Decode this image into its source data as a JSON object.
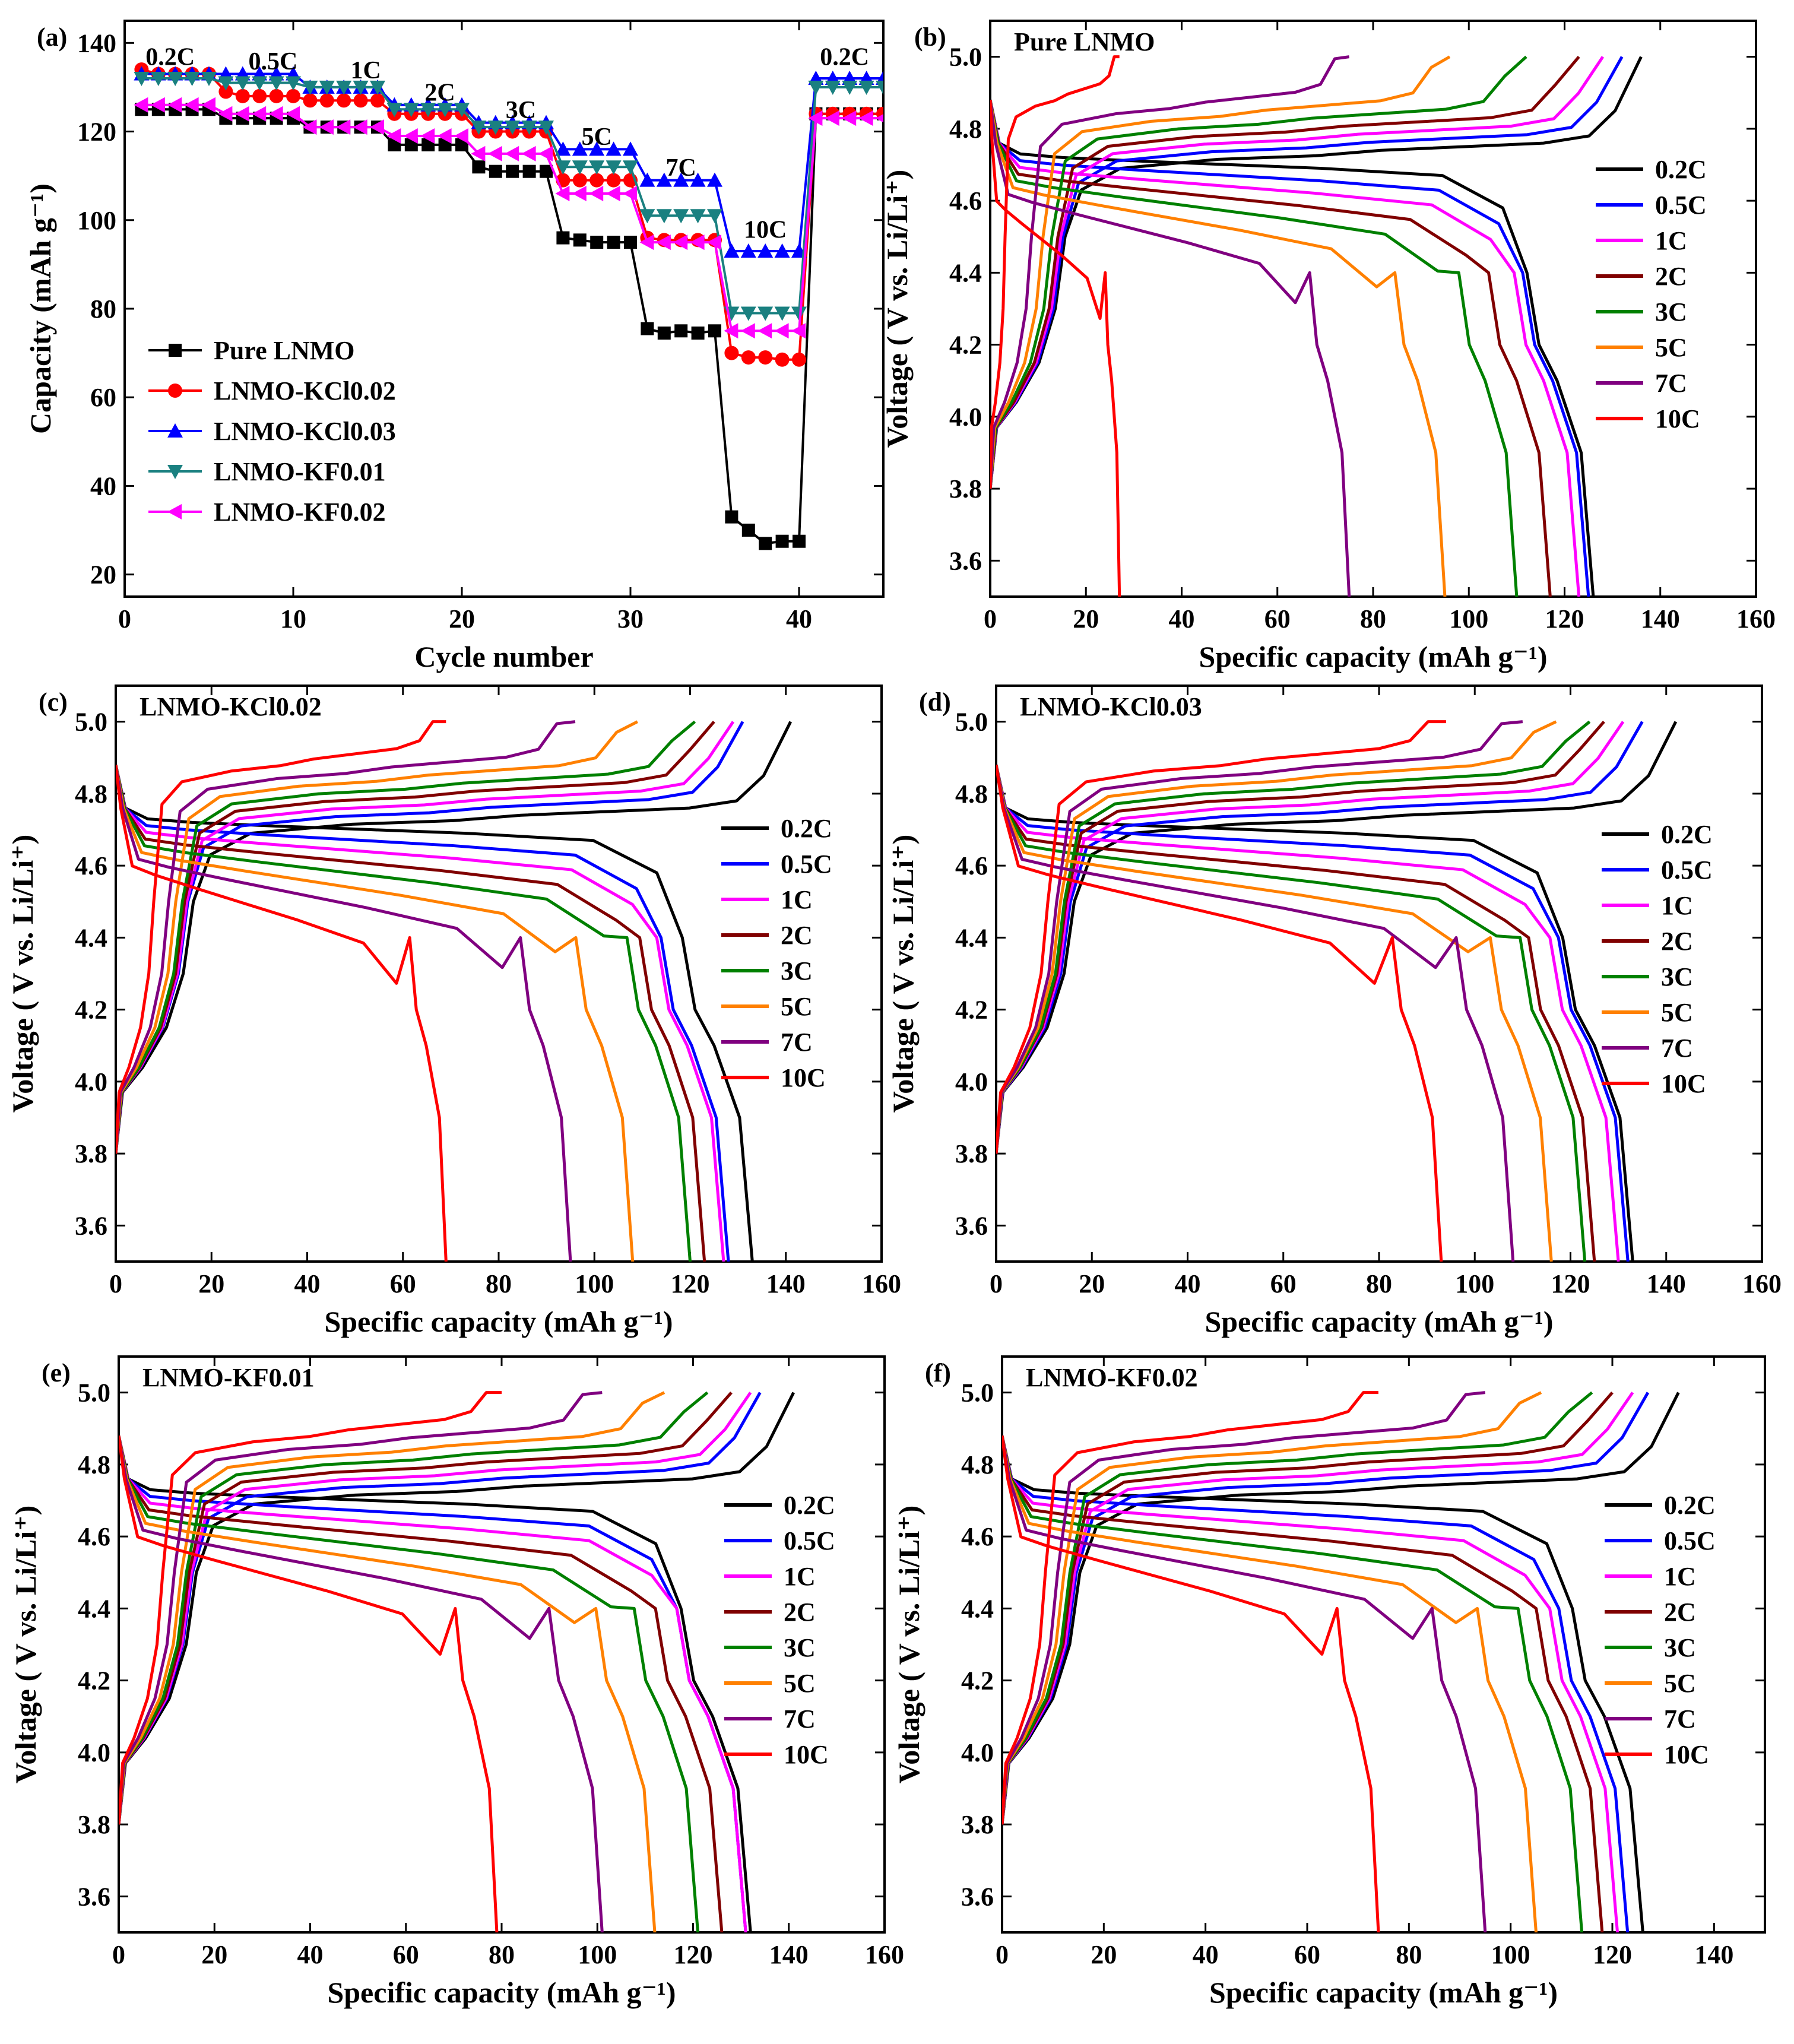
{
  "chart_data": [
    {
      "panel": "(a)",
      "type": "line",
      "title": "",
      "xlabel": "Cycle number",
      "ylabel": "Capacity (mAh g⁻¹)",
      "xlim": [
        0,
        45
      ],
      "ylim": [
        15,
        145
      ],
      "xticks": [
        0,
        10,
        20,
        30,
        40
      ],
      "yticks": [
        20,
        40,
        60,
        80,
        100,
        120,
        140
      ],
      "rate_labels": [
        {
          "text": "0.2C",
          "x": 2.7,
          "y": 135
        },
        {
          "text": "0.5C",
          "x": 8.8,
          "y": 134
        },
        {
          "text": "1C",
          "x": 14.3,
          "y": 132
        },
        {
          "text": "2C",
          "x": 18.7,
          "y": 127
        },
        {
          "text": "3C",
          "x": 23.5,
          "y": 123
        },
        {
          "text": "5C",
          "x": 28,
          "y": 117
        },
        {
          "text": "7C",
          "x": 33.0,
          "y": 110
        },
        {
          "text": "10C",
          "x": 38.0,
          "y": 96
        },
        {
          "text": "0.2C",
          "x": 42.7,
          "y": 135
        }
      ],
      "x": [
        1,
        2,
        3,
        4,
        5,
        6,
        7,
        8,
        9,
        10,
        11,
        12,
        13,
        14,
        15,
        16,
        17,
        18,
        19,
        20,
        21,
        22,
        23,
        24,
        25,
        26,
        27,
        28,
        29,
        30,
        31,
        32,
        33,
        34,
        35,
        36,
        37,
        38,
        39,
        40,
        41,
        42,
        43,
        44,
        45
      ],
      "series": [
        {
          "name": "Pure LNMO",
          "color": "#000000",
          "marker": "square",
          "values": [
            125,
            125,
            125,
            125,
            125,
            123,
            123,
            123,
            123,
            123,
            121,
            121,
            121,
            121,
            121,
            117,
            117,
            117,
            117,
            117,
            112,
            111,
            111,
            111,
            111,
            96,
            95.5,
            95,
            95,
            95,
            75.5,
            74.5,
            75,
            74.5,
            75,
            33,
            30,
            27,
            27.5,
            27.5,
            124,
            124,
            124,
            124,
            124
          ]
        },
        {
          "name": "LNMO-KCl0.02",
          "color": "#ff0000",
          "marker": "circle",
          "values": [
            134,
            133,
            133,
            133,
            133,
            129,
            128,
            128,
            128,
            128,
            127,
            127,
            127,
            127,
            127,
            124,
            124,
            124,
            124,
            124,
            120,
            120,
            120,
            120,
            120,
            109,
            109,
            109,
            109,
            109,
            96,
            95.5,
            95.5,
            95.5,
            95.5,
            70,
            69,
            69,
            68.5,
            68.5,
            124,
            124,
            124,
            124,
            124
          ]
        },
        {
          "name": "LNMO-KCl0.03",
          "color": "#0000ff",
          "marker": "triangle-up",
          "values": [
            133,
            133,
            133,
            133,
            133,
            133,
            133,
            133,
            133,
            133,
            130,
            130,
            130,
            130,
            130,
            126,
            126,
            126,
            126,
            126,
            122,
            122,
            122,
            122,
            122,
            116,
            116,
            116,
            116,
            116,
            109,
            109,
            109,
            109,
            109,
            93,
            93,
            93,
            93,
            93,
            132,
            132,
            132,
            132,
            132
          ]
        },
        {
          "name": "LNMO-KF0.01",
          "color": "#1a8080",
          "marker": "triangle-down",
          "values": [
            132,
            132,
            132,
            132,
            132,
            131,
            131,
            131,
            131,
            131,
            130,
            130,
            130,
            130,
            130,
            125,
            125,
            125,
            125,
            125,
            121,
            121,
            121,
            121,
            121,
            112,
            112,
            112,
            112,
            112,
            101,
            101,
            101,
            101,
            101,
            79,
            79,
            79,
            79,
            79,
            130,
            130,
            130,
            130,
            130
          ]
        },
        {
          "name": "LNMO-KF0.02",
          "color": "#ff00ff",
          "marker": "triangle-left",
          "values": [
            126,
            126,
            126,
            126,
            126,
            124,
            124,
            124,
            124,
            124,
            121,
            121,
            121,
            121,
            121,
            119,
            119,
            119,
            119,
            119,
            115,
            115,
            115,
            115,
            115,
            106,
            106,
            106,
            106,
            106,
            95,
            95,
            95,
            95,
            95,
            75,
            75,
            75,
            75,
            75,
            123,
            123,
            123,
            123,
            123
          ]
        }
      ]
    },
    {
      "panel": "(b)",
      "panel_title": "Pure LNMO",
      "type": "line",
      "xlabel": "Specific capacity (mAh g⁻¹)",
      "ylabel": "Voltage ( V vs. Li/Li⁺)",
      "xlim": [
        0,
        160
      ],
      "ylim": [
        3.5,
        5.1
      ],
      "xticks": [
        0,
        20,
        40,
        60,
        80,
        100,
        120,
        140,
        160
      ],
      "yticks": [
        3.6,
        3.8,
        4.0,
        4.2,
        4.4,
        4.6,
        4.8,
        5.0
      ],
      "series": [
        {
          "name": "0.2C",
          "color": "#000000",
          "charge_end": 136,
          "discharge_end": 126
        },
        {
          "name": "0.5C",
          "color": "#0000ff",
          "charge_end": 132,
          "discharge_end": 125
        },
        {
          "name": "1C",
          "color": "#ff00ff",
          "charge_end": 128,
          "discharge_end": 123
        },
        {
          "name": "2C",
          "color": "#800000",
          "charge_end": 123,
          "discharge_end": 117
        },
        {
          "name": "3C",
          "color": "#008000",
          "charge_end": 112,
          "discharge_end": 110
        },
        {
          "name": "5C",
          "color": "#ff8000",
          "charge_end": 96,
          "discharge_end": 95
        },
        {
          "name": "7C",
          "color": "#800080",
          "charge_end": 75,
          "discharge_end": 75
        },
        {
          "name": "10C",
          "color": "#ff0000",
          "charge_end": 27,
          "discharge_end": 27
        }
      ]
    },
    {
      "panel": "(c)",
      "panel_title": "LNMO-KCl0.02",
      "type": "line",
      "xlabel": "Specific capacity (mAh g⁻¹)",
      "ylabel": "Voltage ( V vs. Li/Li⁺)",
      "xlim": [
        0,
        160
      ],
      "ylim": [
        3.5,
        5.1
      ],
      "xticks": [
        0,
        20,
        40,
        60,
        80,
        100,
        120,
        140,
        160
      ],
      "yticks": [
        3.6,
        3.8,
        4.0,
        4.2,
        4.4,
        4.6,
        4.8,
        5.0
      ],
      "series": [
        {
          "name": "0.2C",
          "color": "#000000",
          "charge_end": 141,
          "discharge_end": 133
        },
        {
          "name": "0.5C",
          "color": "#0000ff",
          "charge_end": 131,
          "discharge_end": 128
        },
        {
          "name": "1C",
          "color": "#ff00ff",
          "charge_end": 129,
          "discharge_end": 127
        },
        {
          "name": "2C",
          "color": "#800000",
          "charge_end": 125,
          "discharge_end": 123
        },
        {
          "name": "3C",
          "color": "#008000",
          "charge_end": 121,
          "discharge_end": 120
        },
        {
          "name": "5C",
          "color": "#ff8000",
          "charge_end": 109,
          "discharge_end": 108
        },
        {
          "name": "7C",
          "color": "#800080",
          "charge_end": 96,
          "discharge_end": 95
        },
        {
          "name": "10C",
          "color": "#ff0000",
          "charge_end": 69,
          "discharge_end": 69
        }
      ]
    },
    {
      "panel": "(d)",
      "panel_title": "LNMO-KCl0.03",
      "type": "line",
      "xlabel": "Specific capacity (mAh g⁻¹)",
      "ylabel": "Voltage ( V vs. Li/Li⁺)",
      "xlim": [
        0,
        160
      ],
      "ylim": [
        3.5,
        5.1
      ],
      "xticks": [
        0,
        20,
        40,
        60,
        80,
        100,
        120,
        140,
        160
      ],
      "yticks": [
        3.6,
        3.8,
        4.0,
        4.2,
        4.4,
        4.6,
        4.8,
        5.0
      ],
      "series": [
        {
          "name": "0.2C",
          "color": "#000000",
          "charge_end": 142,
          "discharge_end": 133
        },
        {
          "name": "0.5C",
          "color": "#0000ff",
          "charge_end": 135,
          "discharge_end": 132
        },
        {
          "name": "1C",
          "color": "#ff00ff",
          "charge_end": 131,
          "discharge_end": 130
        },
        {
          "name": "2C",
          "color": "#800000",
          "charge_end": 127,
          "discharge_end": 125
        },
        {
          "name": "3C",
          "color": "#008000",
          "charge_end": 124,
          "discharge_end": 123
        },
        {
          "name": "5C",
          "color": "#ff8000",
          "charge_end": 117,
          "discharge_end": 116
        },
        {
          "name": "7C",
          "color": "#800080",
          "charge_end": 110,
          "discharge_end": 108
        },
        {
          "name": "10C",
          "color": "#ff0000",
          "charge_end": 94,
          "discharge_end": 93
        }
      ]
    },
    {
      "panel": "(e)",
      "panel_title": "LNMO-KF0.01",
      "type": "line",
      "xlabel": "Specific capacity (mAh g⁻¹)",
      "ylabel": "Voltage ( V vs. Li/Li⁺)",
      "xlim": [
        0,
        160
      ],
      "ylim": [
        3.5,
        5.1
      ],
      "xticks": [
        0,
        20,
        40,
        60,
        80,
        100,
        120,
        140,
        160
      ],
      "yticks": [
        3.6,
        3.8,
        4.0,
        4.2,
        4.4,
        4.6,
        4.8,
        5.0
      ],
      "series": [
        {
          "name": "0.2C",
          "color": "#000000",
          "charge_end": 141,
          "discharge_end": 132
        },
        {
          "name": "0.5C",
          "color": "#0000ff",
          "charge_end": 134,
          "discharge_end": 131
        },
        {
          "name": "1C",
          "color": "#ff00ff",
          "charge_end": 132,
          "discharge_end": 131
        },
        {
          "name": "2C",
          "color": "#800000",
          "charge_end": 128,
          "discharge_end": 126
        },
        {
          "name": "3C",
          "color": "#008000",
          "charge_end": 123,
          "discharge_end": 121
        },
        {
          "name": "5C",
          "color": "#ff8000",
          "charge_end": 114,
          "discharge_end": 112
        },
        {
          "name": "7C",
          "color": "#800080",
          "charge_end": 101,
          "discharge_end": 101
        },
        {
          "name": "10C",
          "color": "#ff0000",
          "charge_end": 80,
          "discharge_end": 79
        }
      ]
    },
    {
      "panel": "(f)",
      "panel_title": "LNMO-KF0.02",
      "type": "line",
      "xlabel": "Specific capacity (mAh g⁻¹)",
      "ylabel": "Voltage ( V vs. Li/Li⁺)",
      "xlim": [
        0,
        150
      ],
      "ylim": [
        3.5,
        5.1
      ],
      "xticks": [
        0,
        20,
        40,
        60,
        80,
        100,
        120,
        140
      ],
      "yticks": [
        3.6,
        3.8,
        4.0,
        4.2,
        4.4,
        4.6,
        4.8,
        5.0
      ],
      "series": [
        {
          "name": "0.2C",
          "color": "#000000",
          "charge_end": 133,
          "discharge_end": 126
        },
        {
          "name": "0.5C",
          "color": "#0000ff",
          "charge_end": 127,
          "discharge_end": 123
        },
        {
          "name": "1C",
          "color": "#ff00ff",
          "charge_end": 124,
          "discharge_end": 121
        },
        {
          "name": "2C",
          "color": "#800000",
          "charge_end": 120,
          "discharge_end": 118
        },
        {
          "name": "3C",
          "color": "#008000",
          "charge_end": 116,
          "discharge_end": 114
        },
        {
          "name": "5C",
          "color": "#ff8000",
          "charge_end": 106,
          "discharge_end": 105
        },
        {
          "name": "7C",
          "color": "#800080",
          "charge_end": 95,
          "discharge_end": 95
        },
        {
          "name": "10C",
          "color": "#ff0000",
          "charge_end": 74,
          "discharge_end": 74
        }
      ]
    }
  ]
}
